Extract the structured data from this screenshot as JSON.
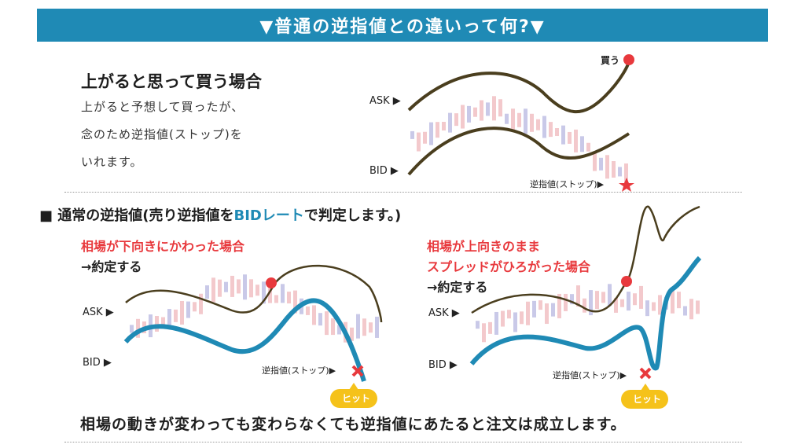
{
  "banner": {
    "title": "▼普通の逆指値との違いって何?▼"
  },
  "top": {
    "heading": "上がると思って買う場合",
    "desc_lines": [
      "上がると予想して買ったが、",
      "念のため逆指値(ストップ)を",
      "いれます。"
    ],
    "ask_label": "ASK ▶",
    "bid_label": "BID ▶",
    "buy_label": "買う",
    "stop_label": "逆指値(ストップ)▶"
  },
  "section": {
    "title_prefix": "■ 通常の逆指値(売り逆指値を",
    "title_highlight": "BIDレート",
    "title_suffix": "で判定します。)"
  },
  "left_case": {
    "red_line": "相場が下向きにかわった場合",
    "result": "→約定する",
    "ask_label": "ASK ▶",
    "bid_label": "BID ▶",
    "stop_label": "逆指値(ストップ)▶",
    "hit_label": "ヒット"
  },
  "right_case": {
    "red_line1": "相場が上向きのまま",
    "red_line2": "スプレッドがひろがった場合",
    "result": "→約定する",
    "ask_label": "ASK ▶",
    "bid_label": "BID ▶",
    "stop_label": "逆指値(ストップ)▶",
    "hit_label": "ヒット"
  },
  "footer": {
    "text": "相場の動きが変わっても変わらなくても逆指値にあたると注文は成立します。"
  },
  "colors": {
    "banner": "#1f8ab5",
    "accent_red": "#e8393d",
    "bid_blue": "#1f8ab5",
    "curve_brown": "#4a3e1e",
    "hit_yellow": "#f5c21a"
  }
}
